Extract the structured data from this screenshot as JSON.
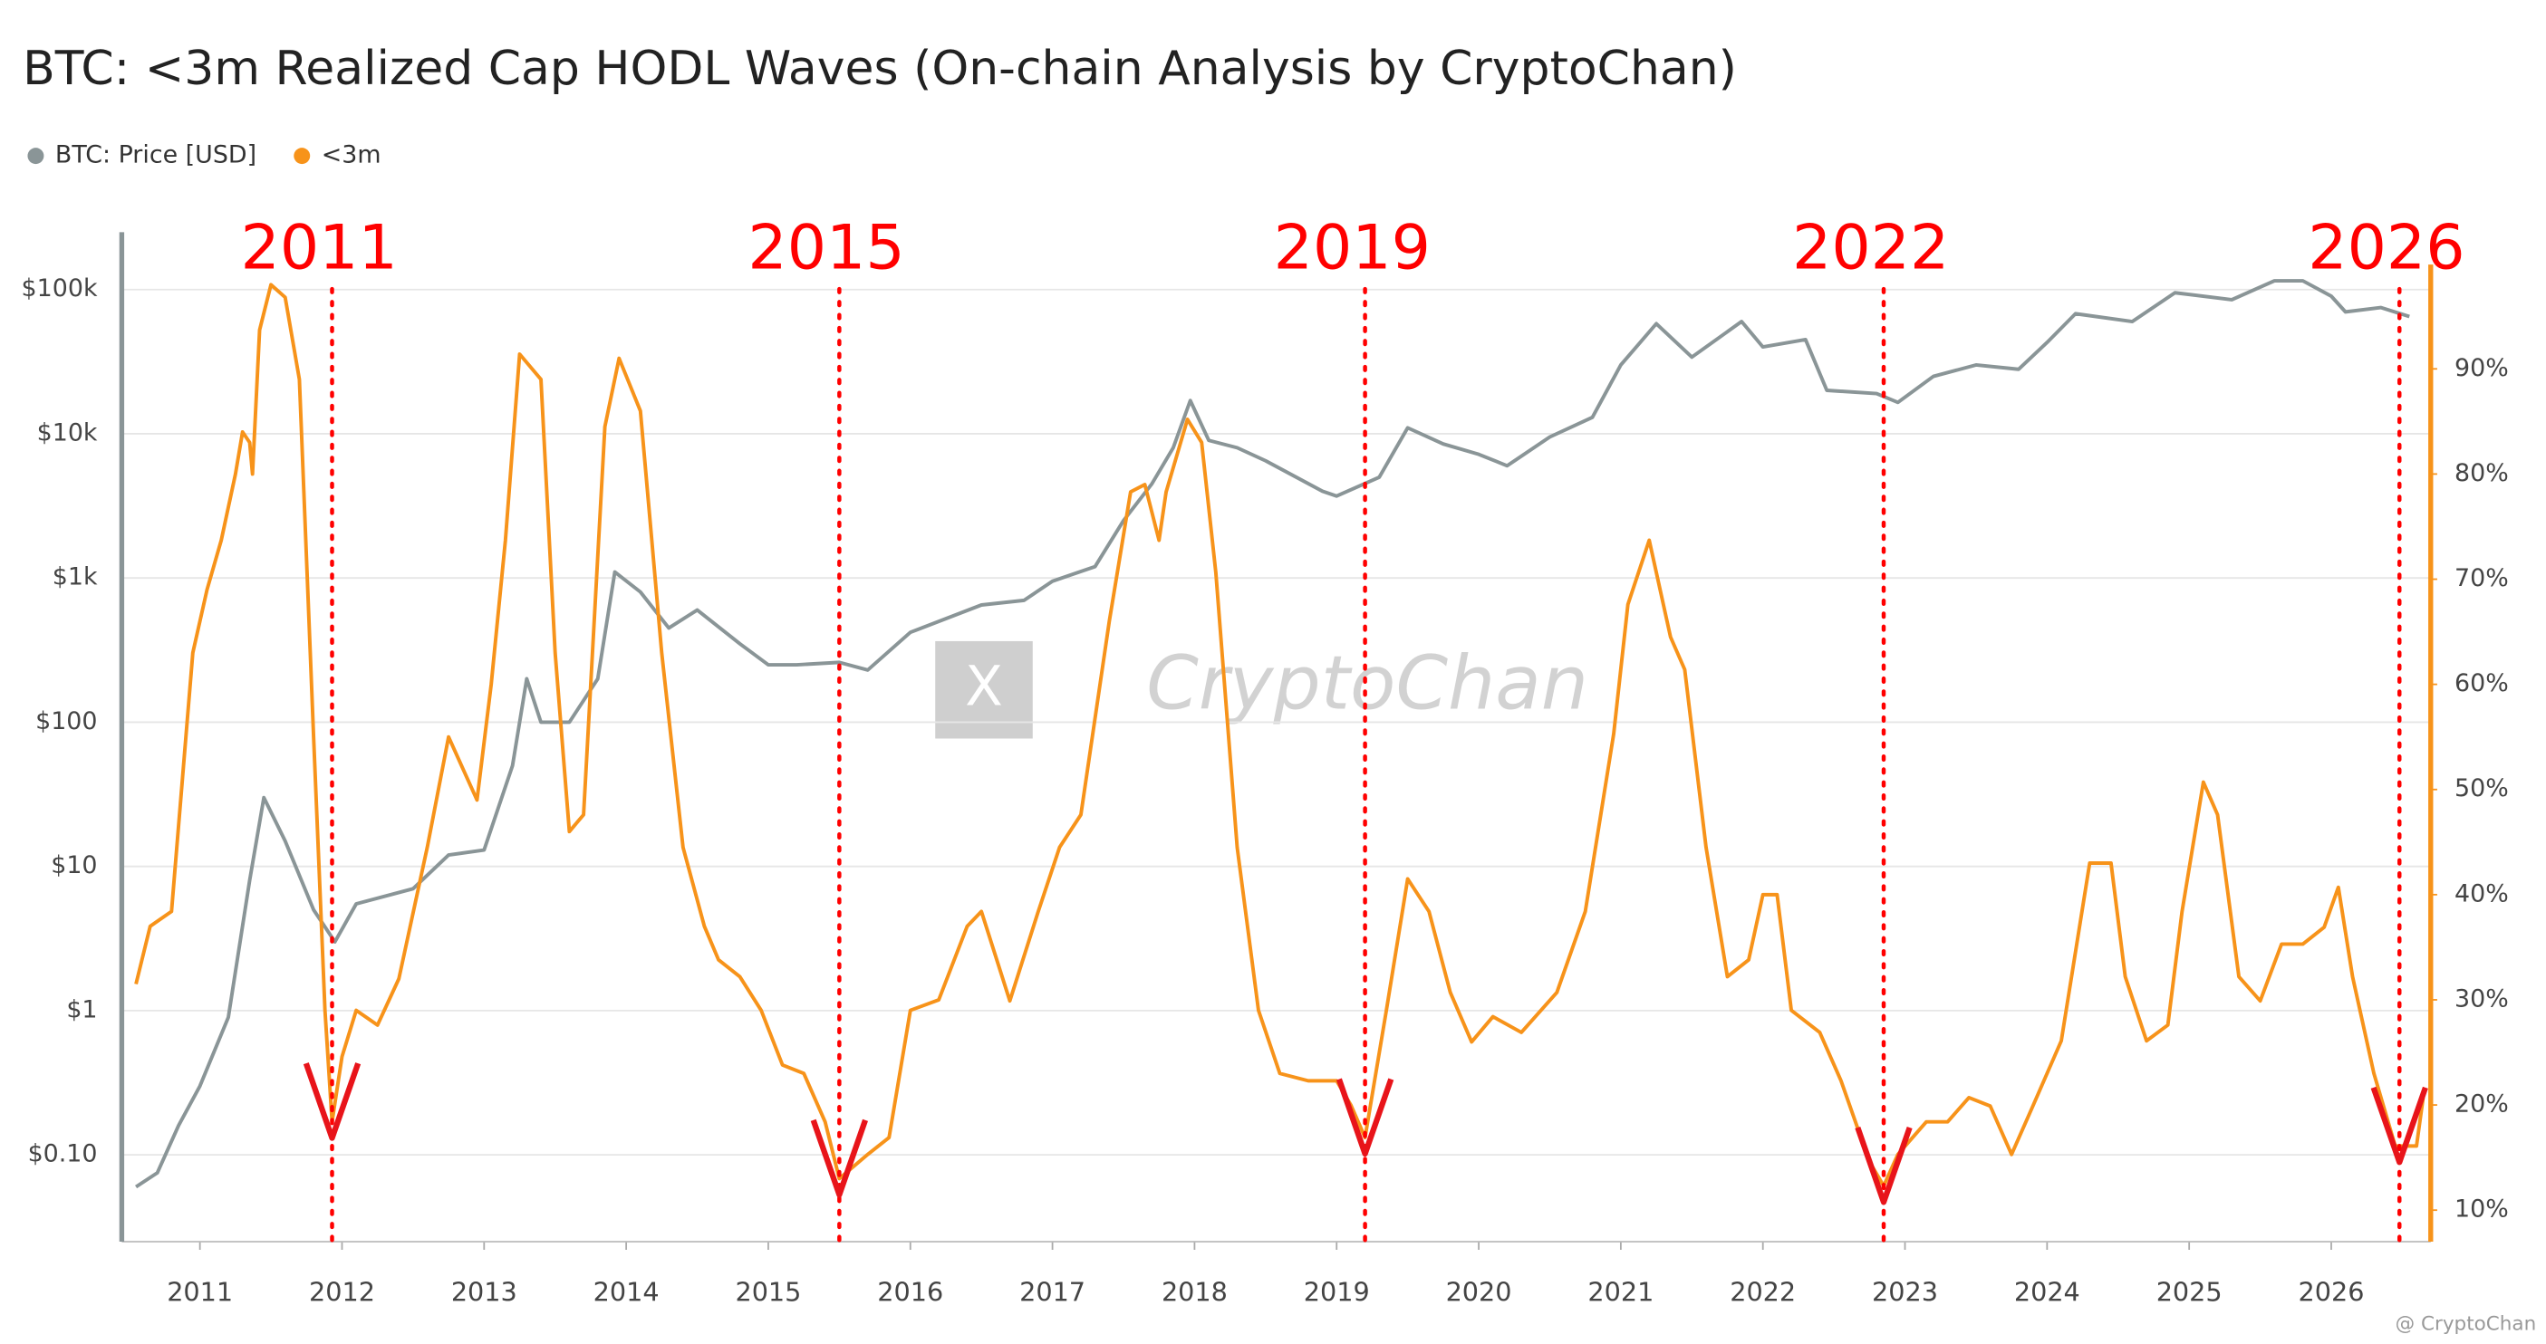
{
  "chart_data": {
    "type": "line",
    "title": "BTC: <3m Realized Cap HODL Waves (On-chain Analysis by CryptoChan)",
    "watermark": "CryptoChan",
    "credit": "@ CryptoChan",
    "log_y": true,
    "grid": true,
    "legend": "top-left",
    "xlim": [
      2010.45,
      2026.7
    ],
    "xticks": [
      2011,
      2012,
      2013,
      2014,
      2015,
      2016,
      2017,
      2018,
      2019,
      2020,
      2021,
      2022,
      2023,
      2024,
      2025,
      2026
    ],
    "ylim": [
      0.025,
      250000
    ],
    "yticks": [
      {
        "value": 0.1,
        "label": "$0.10"
      },
      {
        "value": 1,
        "label": "$1"
      },
      {
        "value": 10,
        "label": "$10"
      },
      {
        "value": 100,
        "label": "$100"
      },
      {
        "value": 1000,
        "label": "$1k"
      },
      {
        "value": 10000,
        "label": "$10k"
      },
      {
        "value": 100000,
        "label": "$100k"
      }
    ],
    "y2lim": [
      7,
      103
    ],
    "y2ticks": [
      {
        "value": 10,
        "label": "10%"
      },
      {
        "value": 20,
        "label": "20%"
      },
      {
        "value": 30,
        "label": "30%"
      },
      {
        "value": 40,
        "label": "40%"
      },
      {
        "value": 50,
        "label": "50%"
      },
      {
        "value": 60,
        "label": "60%"
      },
      {
        "value": 70,
        "label": "70%"
      },
      {
        "value": 80,
        "label": "80%"
      },
      {
        "value": 90,
        "label": "90%"
      }
    ],
    "annotations": [
      {
        "text": "2011",
        "x": 2011.93,
        "color": "#ff0000"
      },
      {
        "text": "2015",
        "x": 2015.5,
        "color": "#ff0000"
      },
      {
        "text": "2019",
        "x": 2019.2,
        "color": "#ff0000"
      },
      {
        "text": "2022",
        "x": 2022.85,
        "color": "#ff0000"
      },
      {
        "text": "2026",
        "x": 2026.48,
        "color": "#ff0000"
      }
    ],
    "series": [
      {
        "name": "BTC: Price [USD]",
        "color": "#8a9597",
        "axis": "y",
        "x": [
          2010.55,
          2010.7,
          2010.85,
          2011.0,
          2011.2,
          2011.35,
          2011.45,
          2011.6,
          2011.8,
          2011.95,
          2012.1,
          2012.5,
          2012.75,
          2013.0,
          2013.2,
          2013.3,
          2013.4,
          2013.6,
          2013.8,
          2013.92,
          2014.1,
          2014.3,
          2014.5,
          2014.8,
          2015.0,
          2015.2,
          2015.5,
          2015.7,
          2016.0,
          2016.5,
          2016.8,
          2017.0,
          2017.3,
          2017.5,
          2017.7,
          2017.85,
          2017.97,
          2018.1,
          2018.3,
          2018.5,
          2018.9,
          2019.0,
          2019.3,
          2019.5,
          2019.75,
          2020.0,
          2020.2,
          2020.5,
          2020.8,
          2021.0,
          2021.25,
          2021.5,
          2021.85,
          2022.0,
          2022.3,
          2022.45,
          2022.8,
          2022.95,
          2023.2,
          2023.5,
          2023.8,
          2024.0,
          2024.2,
          2024.6,
          2024.9,
          2025.3,
          2025.6,
          2025.8,
          2026.0,
          2026.1,
          2026.35,
          2026.55
        ],
        "values": [
          0.06,
          0.075,
          0.16,
          0.3,
          0.9,
          8,
          30,
          15,
          5,
          3,
          5.5,
          7,
          12,
          13,
          50,
          200,
          100,
          100,
          200,
          1100,
          800,
          450,
          600,
          350,
          250,
          250,
          260,
          230,
          420,
          650,
          700,
          950,
          1200,
          2500,
          4500,
          8000,
          17000,
          9000,
          8000,
          6500,
          4000,
          3700,
          5000,
          11000,
          8500,
          7200,
          6000,
          9500,
          13000,
          30000,
          58000,
          34000,
          60000,
          40000,
          45000,
          20000,
          19000,
          16500,
          25000,
          30000,
          28000,
          43000,
          68000,
          60000,
          95000,
          85000,
          115000,
          115000,
          90000,
          70000,
          75000,
          65000
        ]
      },
      {
        "name": "<3m",
        "color": "#f7931a",
        "axis": "y2",
        "x": [
          2010.55,
          2010.65,
          2010.8,
          2010.95,
          2011.05,
          2011.15,
          2011.25,
          2011.3,
          2011.35,
          2011.37,
          2011.42,
          2011.5,
          2011.6,
          2011.7,
          2011.8,
          2011.88,
          2011.93,
          2012.0,
          2012.1,
          2012.25,
          2012.4,
          2012.6,
          2012.75,
          2012.85,
          2012.95,
          2013.05,
          2013.15,
          2013.25,
          2013.4,
          2013.5,
          2013.6,
          2013.7,
          2013.85,
          2013.95,
          2014.1,
          2014.25,
          2014.4,
          2014.55,
          2014.65,
          2014.8,
          2014.95,
          2015.1,
          2015.25,
          2015.4,
          2015.5,
          2015.7,
          2015.85,
          2016.0,
          2016.2,
          2016.4,
          2016.5,
          2016.7,
          2016.9,
          2017.05,
          2017.2,
          2017.4,
          2017.55,
          2017.65,
          2017.75,
          2017.8,
          2017.95,
          2018.05,
          2018.15,
          2018.3,
          2018.45,
          2018.6,
          2018.8,
          2019.0,
          2019.1,
          2019.2,
          2019.35,
          2019.5,
          2019.65,
          2019.8,
          2019.95,
          2020.1,
          2020.3,
          2020.55,
          2020.75,
          2020.95,
          2021.05,
          2021.2,
          2021.35,
          2021.45,
          2021.6,
          2021.75,
          2021.9,
          2022.0,
          2022.1,
          2022.2,
          2022.4,
          2022.55,
          2022.75,
          2022.85,
          2022.95,
          2023.15,
          2023.3,
          2023.45,
          2023.6,
          2023.75,
          2023.9,
          2024.1,
          2024.3,
          2024.45,
          2024.55,
          2024.7,
          2024.85,
          2024.95,
          2025.1,
          2025.2,
          2025.35,
          2025.5,
          2025.65,
          2025.8,
          2025.95,
          2026.05,
          2026.15,
          2026.3,
          2026.45,
          2026.6,
          2026.65
        ],
        "values": [
          31.5,
          37,
          38.4,
          63,
          69,
          73.7,
          80,
          84,
          83,
          80,
          93.7,
          98,
          96.8,
          89,
          55,
          29,
          18.4,
          24.6,
          29,
          27.6,
          32,
          44.5,
          55,
          52,
          49,
          60,
          73.7,
          91.4,
          89,
          63,
          46,
          47.6,
          84.5,
          91,
          86,
          63,
          44.5,
          37,
          33.8,
          32.2,
          29,
          23.8,
          23,
          18.4,
          13,
          15.3,
          16.9,
          29,
          30,
          37,
          38.4,
          29.9,
          38.4,
          44.5,
          47.6,
          66,
          78.3,
          79,
          73.7,
          78.3,
          85.2,
          83,
          70.6,
          44.5,
          29,
          23,
          22.3,
          22.3,
          20,
          16.9,
          29,
          41.5,
          38.4,
          30.7,
          26,
          28.4,
          26.9,
          30.7,
          38.4,
          55.3,
          67.6,
          73.7,
          64.5,
          61.4,
          44.5,
          32.2,
          33.8,
          40,
          40,
          29,
          26.9,
          22.3,
          14.6,
          12.3,
          15.3,
          18.4,
          18.4,
          20.7,
          19.9,
          15.3,
          19.9,
          26.1,
          43,
          43,
          32.2,
          26.1,
          27.6,
          38.4,
          50.7,
          47.6,
          32.2,
          29.9,
          35.3,
          35.3,
          36.9,
          40.7,
          32.2,
          23,
          16.1,
          16.1,
          21
        ]
      }
    ]
  }
}
